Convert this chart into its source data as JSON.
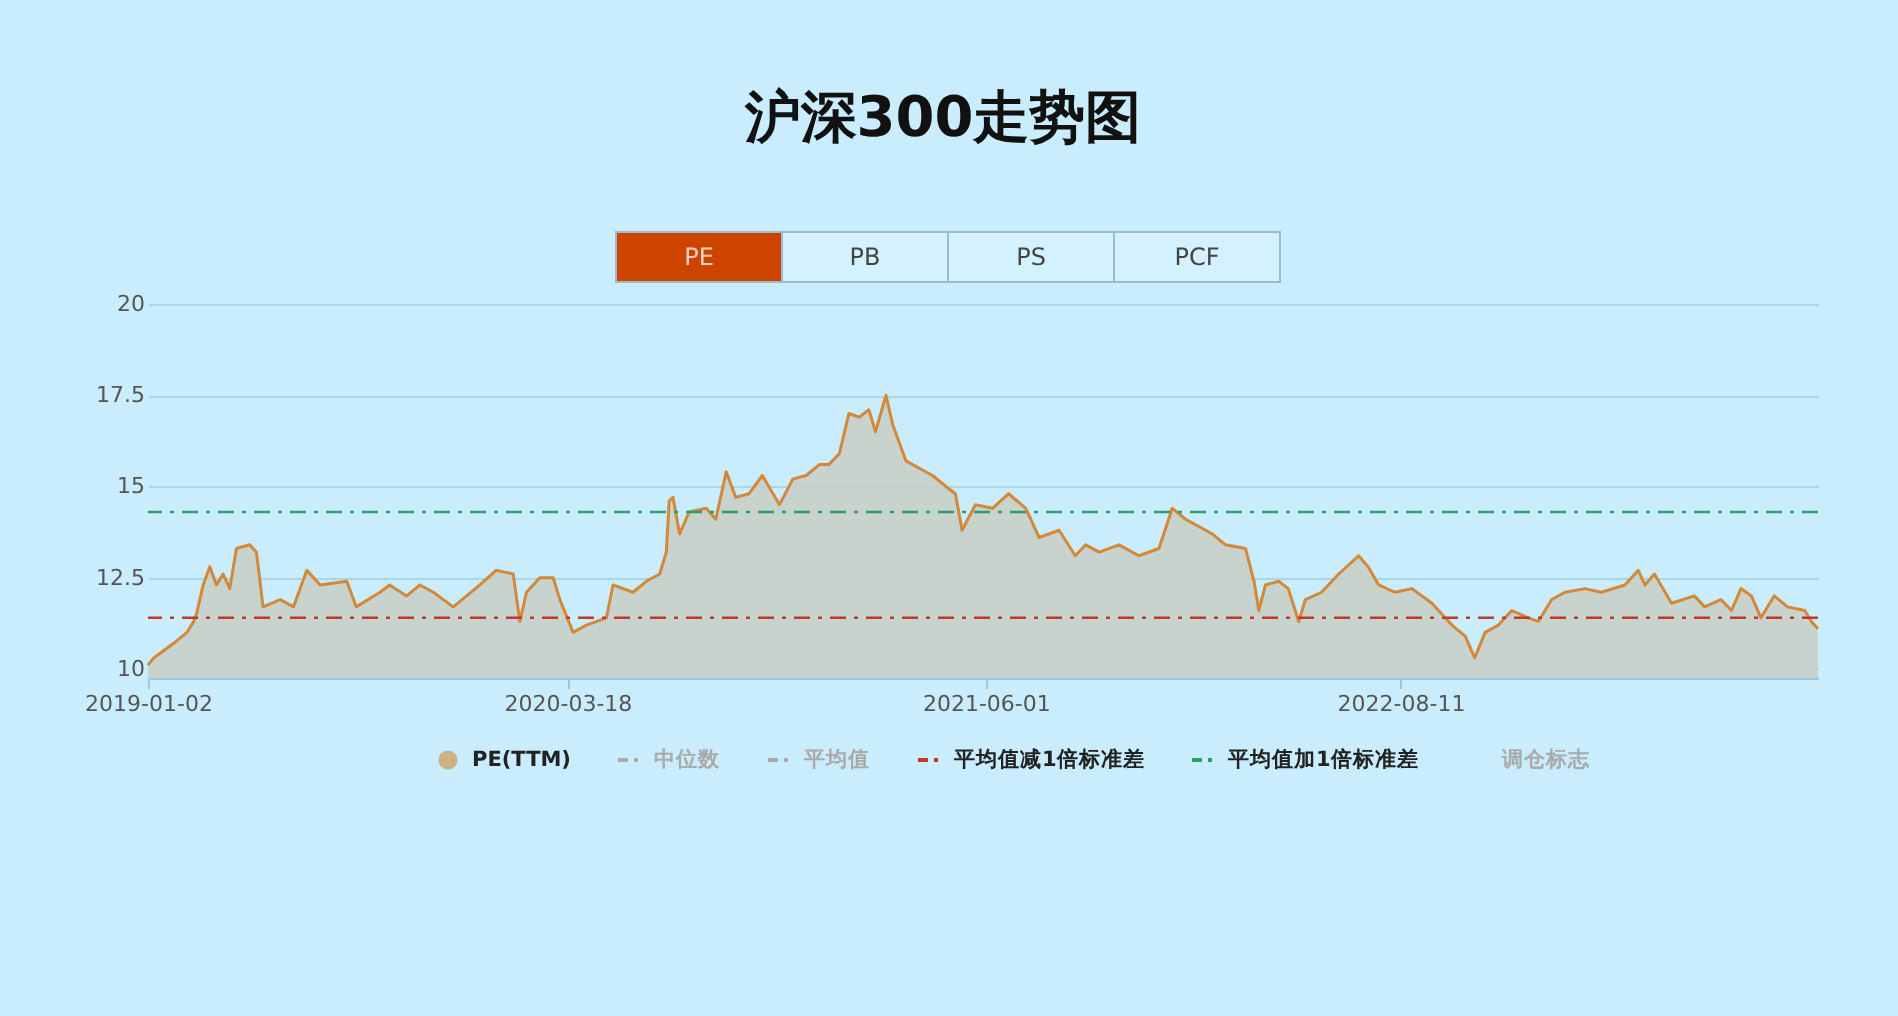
{
  "chart_data": {
    "type": "area",
    "title": "沪深300走势图",
    "annotations": [
      "PE",
      "PB",
      "PS",
      "PCF",
      "中位数",
      "平均值",
      "调仓标志"
    ],
    "x": [
      "2019-01-02",
      "2019-01-08",
      "2019-01-29",
      "2019-02-12",
      "2019-02-19",
      "2019-02-22",
      "2019-03-01",
      "2019-03-08",
      "2019-03-15",
      "2019-03-22",
      "2019-03-29",
      "2019-04-05",
      "2019-04-19",
      "2019-04-26",
      "2019-05-03",
      "2019-05-21",
      "2019-06-04",
      "2019-06-18",
      "2019-07-02",
      "2019-07-30",
      "2019-08-09",
      "2019-09-03",
      "2019-09-13",
      "2019-10-01",
      "2019-10-15",
      "2019-10-29",
      "2019-11-19",
      "2019-12-17",
      "2020-01-03",
      "2020-01-21",
      "2020-01-28",
      "2020-02-04",
      "2020-02-18",
      "2020-03-03",
      "2020-03-10",
      "2020-03-24",
      "2020-04-07",
      "2020-04-28",
      "2020-05-05",
      "2020-05-26",
      "2020-06-09",
      "2020-06-23",
      "2020-06-30",
      "2020-07-03",
      "2020-07-07",
      "2020-07-14",
      "2020-07-24",
      "2020-08-11",
      "2020-08-21",
      "2020-09-01",
      "2020-09-11",
      "2020-09-25",
      "2020-10-09",
      "2020-10-27",
      "2020-11-10",
      "2020-11-24",
      "2020-12-08",
      "2020-12-18",
      "2020-12-29",
      "2021-01-08",
      "2021-01-19",
      "2021-01-29",
      "2021-02-05",
      "2021-02-16",
      "2021-02-23",
      "2021-03-09",
      "2021-03-23",
      "2021-04-06",
      "2021-04-20",
      "2021-04-30",
      "2021-05-07",
      "2021-05-21",
      "2021-06-08",
      "2021-06-25",
      "2021-07-13",
      "2021-07-27",
      "2021-08-17",
      "2021-09-03",
      "2021-09-14",
      "2021-09-28",
      "2021-10-19",
      "2021-11-09",
      "2021-11-30",
      "2021-12-14",
      "2021-12-28",
      "2022-01-25",
      "2022-02-08",
      "2022-03-01",
      "2022-03-10",
      "2022-03-15",
      "2022-03-22",
      "2022-04-05",
      "2022-04-15",
      "2022-04-26",
      "2022-05-03",
      "2022-05-20",
      "2022-06-07",
      "2022-06-28",
      "2022-07-08",
      "2022-07-19",
      "2022-08-05",
      "2022-08-23",
      "2022-09-13",
      "2022-09-20",
      "2022-10-04",
      "2022-10-18",
      "2022-10-28",
      "2022-11-08",
      "2022-11-22",
      "2022-12-06",
      "2022-12-23",
      "2023-01-03",
      "2023-01-17",
      "2023-01-31",
      "2023-02-21",
      "2023-03-10",
      "2023-04-04",
      "2023-04-18",
      "2023-04-25",
      "2023-05-05",
      "2023-05-23",
      "2023-06-16",
      "2023-06-27",
      "2023-07-14",
      "2023-07-25",
      "2023-08-04",
      "2023-08-15",
      "2023-08-25",
      "2023-09-08",
      "2023-09-22",
      "2023-10-10",
      "2023-10-17",
      "2023-10-24"
    ],
    "series": [
      {
        "name": "PE(TTM)",
        "color": "#d4883a",
        "values": [
          10.1,
          10.3,
          10.7,
          11.0,
          11.3,
          11.5,
          12.3,
          12.8,
          12.3,
          12.6,
          12.2,
          13.3,
          13.4,
          13.2,
          11.7,
          11.9,
          11.7,
          12.7,
          12.3,
          12.4,
          11.7,
          12.1,
          12.3,
          12.0,
          12.3,
          12.1,
          11.7,
          12.3,
          12.7,
          12.6,
          11.3,
          12.1,
          12.5,
          12.5,
          11.9,
          11.0,
          11.2,
          11.4,
          12.3,
          12.1,
          12.4,
          12.6,
          13.2,
          14.6,
          14.7,
          13.7,
          14.3,
          14.4,
          14.1,
          15.4,
          14.7,
          14.8,
          15.3,
          14.5,
          15.2,
          15.3,
          15.6,
          15.6,
          15.9,
          17.0,
          16.9,
          17.1,
          16.5,
          17.5,
          16.7,
          15.7,
          15.5,
          15.3,
          15.0,
          14.8,
          13.8,
          14.5,
          14.4,
          14.8,
          14.4,
          13.6,
          13.8,
          13.1,
          13.4,
          13.2,
          13.4,
          13.1,
          13.3,
          14.4,
          14.1,
          13.7,
          13.4,
          13.3,
          12.4,
          11.6,
          12.3,
          12.4,
          12.2,
          11.3,
          11.9,
          12.1,
          12.6,
          13.1,
          12.8,
          12.3,
          12.1,
          12.2,
          11.8,
          11.6,
          11.2,
          10.9,
          10.3,
          11.0,
          11.2,
          11.6,
          11.4,
          11.3,
          11.9,
          12.1,
          12.2,
          12.1,
          12.3,
          12.7,
          12.3,
          12.6,
          11.8,
          12.0,
          11.7,
          11.9,
          11.6,
          12.2,
          12.0,
          11.4,
          12.0,
          11.7,
          11.6,
          11.3,
          11.1
        ]
      }
    ],
    "xlim": [
      "2019-01-02",
      "2023-10-24"
    ],
    "xticks": [
      "2019-01-02",
      "2020-03-18",
      "2021-06-01",
      "2022-08-11"
    ],
    "ylim": [
      9.75,
      20
    ],
    "yticks": [
      10,
      12.5,
      15,
      17.5,
      20
    ],
    "grid": "y",
    "legend": "bottom",
    "ref_lines": [
      {
        "axis": "y",
        "value": 11.4,
        "label": "平均值减1倍标准差",
        "color": "#c0392b",
        "line_style": "dashed"
      },
      {
        "axis": "y",
        "value": 14.3,
        "label": "平均值加1倍标准差",
        "color": "#27a06a",
        "line_style": "dashed"
      }
    ]
  }
}
